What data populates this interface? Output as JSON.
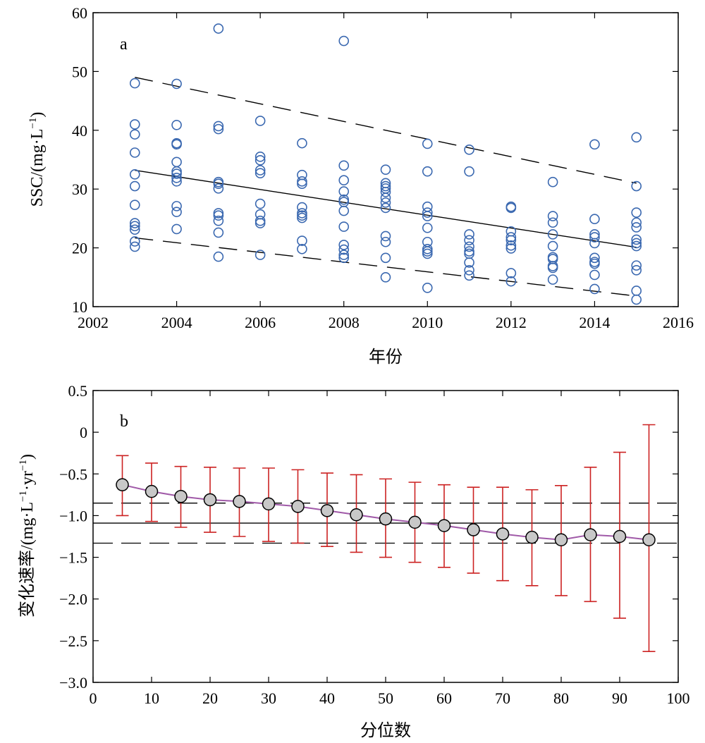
{
  "chart_data": [
    {
      "panel_label": "a",
      "type": "scatter",
      "xlabel": "年份",
      "ylabel": "SSC/(mg·L",
      "ylabel_sup": "−1",
      "ylabel_close": ")",
      "xlim": [
        2002,
        2016
      ],
      "ylim": [
        10,
        60
      ],
      "xticks": [
        2002,
        2004,
        2006,
        2008,
        2010,
        2012,
        2014,
        2016
      ],
      "yticks": [
        10,
        20,
        30,
        40,
        50,
        60
      ],
      "marker_color": "#3a68b0",
      "points": [
        [
          2003,
          48.0
        ],
        [
          2003,
          41.0
        ],
        [
          2003,
          39.3
        ],
        [
          2003,
          36.2
        ],
        [
          2003,
          32.5
        ],
        [
          2003,
          30.5
        ],
        [
          2003,
          27.3
        ],
        [
          2003,
          24.2
        ],
        [
          2003,
          23.7
        ],
        [
          2003,
          23.1
        ],
        [
          2003,
          21.1
        ],
        [
          2003,
          20.2
        ],
        [
          2004,
          47.9
        ],
        [
          2004,
          40.9
        ],
        [
          2004,
          37.8
        ],
        [
          2004,
          37.6
        ],
        [
          2004,
          34.6
        ],
        [
          2004,
          33.0
        ],
        [
          2004,
          32.6
        ],
        [
          2004,
          31.9
        ],
        [
          2004,
          31.3
        ],
        [
          2004,
          27.1
        ],
        [
          2004,
          26.1
        ],
        [
          2004,
          23.2
        ],
        [
          2005,
          57.3
        ],
        [
          2005,
          40.7
        ],
        [
          2005,
          40.2
        ],
        [
          2005,
          31.2
        ],
        [
          2005,
          30.9
        ],
        [
          2005,
          30.1
        ],
        [
          2005,
          25.9
        ],
        [
          2005,
          25.5
        ],
        [
          2005,
          24.6
        ],
        [
          2005,
          22.6
        ],
        [
          2005,
          18.5
        ],
        [
          2006,
          41.6
        ],
        [
          2006,
          35.5
        ],
        [
          2006,
          34.9
        ],
        [
          2006,
          33.2
        ],
        [
          2006,
          32.7
        ],
        [
          2006,
          27.5
        ],
        [
          2006,
          25.7
        ],
        [
          2006,
          24.6
        ],
        [
          2006,
          24.2
        ],
        [
          2006,
          18.8
        ],
        [
          2007,
          37.8
        ],
        [
          2007,
          32.4
        ],
        [
          2007,
          31.3
        ],
        [
          2007,
          30.9
        ],
        [
          2007,
          26.9
        ],
        [
          2007,
          25.9
        ],
        [
          2007,
          25.5
        ],
        [
          2007,
          25.1
        ],
        [
          2007,
          21.2
        ],
        [
          2007,
          19.8
        ],
        [
          2008,
          55.2
        ],
        [
          2008,
          34.0
        ],
        [
          2008,
          31.5
        ],
        [
          2008,
          29.6
        ],
        [
          2008,
          28.2
        ],
        [
          2008,
          27.8
        ],
        [
          2008,
          26.3
        ],
        [
          2008,
          23.6
        ],
        [
          2008,
          20.5
        ],
        [
          2008,
          19.7
        ],
        [
          2008,
          18.8
        ],
        [
          2008,
          18.3
        ],
        [
          2009,
          33.3
        ],
        [
          2009,
          31.0
        ],
        [
          2009,
          30.5
        ],
        [
          2009,
          30.1
        ],
        [
          2009,
          29.5
        ],
        [
          2009,
          28.5
        ],
        [
          2009,
          27.7
        ],
        [
          2009,
          26.8
        ],
        [
          2009,
          22.0
        ],
        [
          2009,
          21.0
        ],
        [
          2009,
          18.3
        ],
        [
          2009,
          15.0
        ],
        [
          2010,
          37.7
        ],
        [
          2010,
          33.0
        ],
        [
          2010,
          27.0
        ],
        [
          2010,
          26.0
        ],
        [
          2010,
          25.4
        ],
        [
          2010,
          23.4
        ],
        [
          2010,
          21.0
        ],
        [
          2010,
          19.8
        ],
        [
          2010,
          19.4
        ],
        [
          2010,
          19.0
        ],
        [
          2010,
          13.2
        ],
        [
          2011,
          36.7
        ],
        [
          2011,
          33.0
        ],
        [
          2011,
          22.3
        ],
        [
          2011,
          21.3
        ],
        [
          2011,
          20.2
        ],
        [
          2011,
          19.4
        ],
        [
          2011,
          19.0
        ],
        [
          2011,
          17.5
        ],
        [
          2011,
          16.2
        ],
        [
          2011,
          15.3
        ],
        [
          2012,
          27.0
        ],
        [
          2012,
          26.8
        ],
        [
          2012,
          22.8
        ],
        [
          2012,
          21.8
        ],
        [
          2012,
          21.3
        ],
        [
          2012,
          20.4
        ],
        [
          2012,
          19.9
        ],
        [
          2012,
          15.7
        ],
        [
          2012,
          14.3
        ],
        [
          2013,
          31.2
        ],
        [
          2013,
          25.4
        ],
        [
          2013,
          24.3
        ],
        [
          2013,
          22.3
        ],
        [
          2013,
          20.3
        ],
        [
          2013,
          18.4
        ],
        [
          2013,
          18.1
        ],
        [
          2013,
          16.9
        ],
        [
          2013,
          16.6
        ],
        [
          2013,
          14.6
        ],
        [
          2014,
          37.6
        ],
        [
          2014,
          24.9
        ],
        [
          2014,
          22.3
        ],
        [
          2014,
          21.8
        ],
        [
          2014,
          20.8
        ],
        [
          2014,
          18.3
        ],
        [
          2014,
          17.6
        ],
        [
          2014,
          17.3
        ],
        [
          2014,
          15.4
        ],
        [
          2014,
          13.0
        ],
        [
          2015,
          38.8
        ],
        [
          2015,
          30.5
        ],
        [
          2015,
          26.0
        ],
        [
          2015,
          24.3
        ],
        [
          2015,
          23.5
        ],
        [
          2015,
          21.4
        ],
        [
          2015,
          20.8
        ],
        [
          2015,
          20.3
        ],
        [
          2015,
          17.0
        ],
        [
          2015,
          16.2
        ],
        [
          2015,
          12.7
        ],
        [
          2015,
          11.2
        ]
      ],
      "trend": {
        "x": [
          2003,
          2015
        ],
        "y": [
          33.2,
          20.1
        ]
      },
      "upper_bound": {
        "x": [
          2003,
          2015
        ],
        "y": [
          49.0,
          31.0
        ]
      },
      "lower_bound": {
        "x": [
          2003,
          2015
        ],
        "y": [
          21.7,
          11.8
        ]
      }
    },
    {
      "panel_label": "b",
      "type": "line",
      "xlabel": "分位数",
      "ylabel": "变化速率/(mg·L",
      "ylabel_sup1": "−1",
      "ylabel_mid": "·yr",
      "ylabel_sup2": "−1",
      "ylabel_close": ")",
      "xlim": [
        0,
        100
      ],
      "ylim": [
        -3.0,
        0.5
      ],
      "xticks": [
        0,
        10,
        20,
        30,
        40,
        50,
        60,
        70,
        80,
        90,
        100
      ],
      "yticks": [
        0.5,
        0,
        -0.5,
        -1.0,
        -1.5,
        -2.0,
        -2.5,
        -3.0
      ],
      "ytick_labels": [
        "0.5",
        "0",
        "−0.5",
        "−1.0",
        "−1.5",
        "−2.0",
        "−2.5",
        "−3.0"
      ],
      "line_color": "#a05aa8",
      "error_color": "#cc2222",
      "marker_fill": "#c8c8c8",
      "x": [
        5,
        10,
        15,
        20,
        25,
        30,
        35,
        40,
        45,
        50,
        55,
        60,
        65,
        70,
        75,
        80,
        85,
        90,
        95
      ],
      "values": [
        -0.63,
        -0.71,
        -0.77,
        -0.81,
        -0.83,
        -0.86,
        -0.89,
        -0.94,
        -0.99,
        -1.04,
        -1.08,
        -1.12,
        -1.17,
        -1.22,
        -1.26,
        -1.29,
        -1.23,
        -1.25,
        -1.29
      ],
      "err_low": [
        -1.0,
        -1.07,
        -1.14,
        -1.2,
        -1.25,
        -1.31,
        -1.33,
        -1.37,
        -1.44,
        -1.5,
        -1.56,
        -1.62,
        -1.69,
        -1.78,
        -1.84,
        -1.96,
        -2.03,
        -2.23,
        -2.63
      ],
      "err_high": [
        -0.28,
        -0.37,
        -0.41,
        -0.42,
        -0.43,
        -0.43,
        -0.45,
        -0.49,
        -0.51,
        -0.56,
        -0.6,
        -0.63,
        -0.66,
        -0.66,
        -0.69,
        -0.64,
        -0.42,
        -0.24,
        0.09
      ],
      "hline_solid": -1.09,
      "hline_dashed": [
        -0.85,
        -1.33
      ]
    }
  ]
}
